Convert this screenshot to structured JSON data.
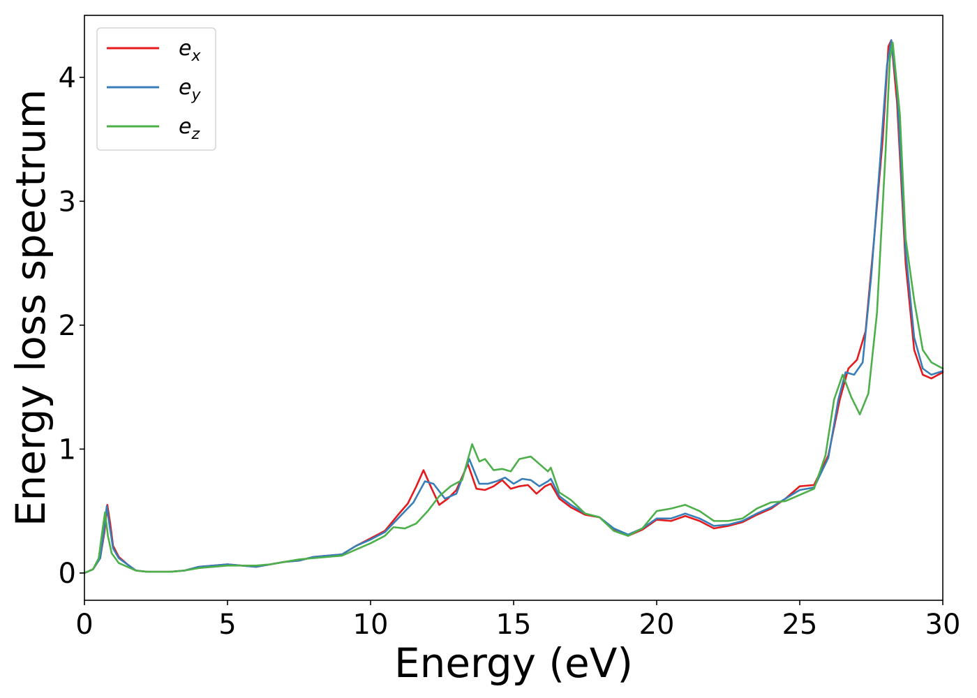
{
  "chart_data": {
    "type": "line",
    "xlabel": "Energy (eV)",
    "ylabel": "Energy loss spectrum",
    "xlim": [
      0,
      30
    ],
    "ylim": [
      -0.22,
      4.5
    ],
    "xticks": [
      0,
      5,
      10,
      15,
      20,
      25,
      30
    ],
    "yticks": [
      0,
      1,
      2,
      3,
      4
    ],
    "grid": false,
    "legend_position": "top-left",
    "series": [
      {
        "name": "e",
        "subscript": "x",
        "color": "#e41a1c",
        "points": [
          [
            0,
            0
          ],
          [
            0.3,
            0.03
          ],
          [
            0.55,
            0.12
          ],
          [
            0.7,
            0.33
          ],
          [
            0.8,
            0.55
          ],
          [
            0.9,
            0.4
          ],
          [
            1.0,
            0.22
          ],
          [
            1.2,
            0.13
          ],
          [
            1.5,
            0.07
          ],
          [
            1.8,
            0.02
          ],
          [
            2.2,
            0.01
          ],
          [
            3,
            0.01
          ],
          [
            3.5,
            0.02
          ],
          [
            4,
            0.05
          ],
          [
            4.5,
            0.06
          ],
          [
            5,
            0.07
          ],
          [
            5.5,
            0.06
          ],
          [
            6,
            0.05
          ],
          [
            6.5,
            0.07
          ],
          [
            7,
            0.09
          ],
          [
            7.5,
            0.1
          ],
          [
            8,
            0.13
          ],
          [
            8.5,
            0.14
          ],
          [
            9,
            0.15
          ],
          [
            9.5,
            0.22
          ],
          [
            10,
            0.28
          ],
          [
            10.5,
            0.34
          ],
          [
            11,
            0.48
          ],
          [
            11.3,
            0.56
          ],
          [
            11.6,
            0.7
          ],
          [
            11.85,
            0.83
          ],
          [
            12.1,
            0.7
          ],
          [
            12.4,
            0.55
          ],
          [
            12.7,
            0.6
          ],
          [
            13,
            0.67
          ],
          [
            13.4,
            0.88
          ],
          [
            13.7,
            0.68
          ],
          [
            14,
            0.67
          ],
          [
            14.3,
            0.7
          ],
          [
            14.6,
            0.75
          ],
          [
            14.9,
            0.68
          ],
          [
            15.2,
            0.7
          ],
          [
            15.5,
            0.71
          ],
          [
            15.8,
            0.64
          ],
          [
            16.1,
            0.7
          ],
          [
            16.3,
            0.72
          ],
          [
            16.6,
            0.6
          ],
          [
            17,
            0.53
          ],
          [
            17.5,
            0.47
          ],
          [
            18,
            0.45
          ],
          [
            18.5,
            0.35
          ],
          [
            19,
            0.3
          ],
          [
            19.5,
            0.35
          ],
          [
            20,
            0.43
          ],
          [
            20.5,
            0.42
          ],
          [
            21,
            0.46
          ],
          [
            21.5,
            0.42
          ],
          [
            22,
            0.36
          ],
          [
            22.5,
            0.38
          ],
          [
            23,
            0.41
          ],
          [
            23.5,
            0.47
          ],
          [
            24,
            0.52
          ],
          [
            24.5,
            0.6
          ],
          [
            25,
            0.7
          ],
          [
            25.5,
            0.71
          ],
          [
            26,
            0.95
          ],
          [
            26.4,
            1.4
          ],
          [
            26.7,
            1.65
          ],
          [
            27,
            1.72
          ],
          [
            27.3,
            1.95
          ],
          [
            27.6,
            2.7
          ],
          [
            27.9,
            3.5
          ],
          [
            28.1,
            4.25
          ],
          [
            28.2,
            4.3
          ],
          [
            28.4,
            3.8
          ],
          [
            28.7,
            2.5
          ],
          [
            29,
            1.8
          ],
          [
            29.3,
            1.6
          ],
          [
            29.6,
            1.57
          ],
          [
            30,
            1.62
          ]
        ]
      },
      {
        "name": "e",
        "subscript": "y",
        "color": "#377eb8",
        "points": [
          [
            0,
            0
          ],
          [
            0.3,
            0.03
          ],
          [
            0.55,
            0.12
          ],
          [
            0.68,
            0.33
          ],
          [
            0.78,
            0.54
          ],
          [
            0.88,
            0.38
          ],
          [
            1.0,
            0.2
          ],
          [
            1.2,
            0.12
          ],
          [
            1.5,
            0.07
          ],
          [
            1.8,
            0.02
          ],
          [
            2.2,
            0.01
          ],
          [
            3,
            0.01
          ],
          [
            3.5,
            0.02
          ],
          [
            4,
            0.05
          ],
          [
            4.5,
            0.06
          ],
          [
            5,
            0.07
          ],
          [
            5.5,
            0.06
          ],
          [
            6,
            0.05
          ],
          [
            6.5,
            0.07
          ],
          [
            7,
            0.09
          ],
          [
            7.5,
            0.1
          ],
          [
            8,
            0.13
          ],
          [
            8.5,
            0.14
          ],
          [
            9,
            0.15
          ],
          [
            9.5,
            0.22
          ],
          [
            10,
            0.27
          ],
          [
            10.5,
            0.33
          ],
          [
            11,
            0.45
          ],
          [
            11.5,
            0.57
          ],
          [
            11.9,
            0.74
          ],
          [
            12.2,
            0.72
          ],
          [
            12.6,
            0.6
          ],
          [
            13,
            0.64
          ],
          [
            13.45,
            0.92
          ],
          [
            13.8,
            0.72
          ],
          [
            14.1,
            0.72
          ],
          [
            14.4,
            0.74
          ],
          [
            14.7,
            0.77
          ],
          [
            15,
            0.72
          ],
          [
            15.3,
            0.76
          ],
          [
            15.6,
            0.75
          ],
          [
            15.9,
            0.7
          ],
          [
            16.2,
            0.74
          ],
          [
            16.3,
            0.76
          ],
          [
            16.6,
            0.62
          ],
          [
            17,
            0.55
          ],
          [
            17.5,
            0.48
          ],
          [
            18,
            0.45
          ],
          [
            18.5,
            0.36
          ],
          [
            19,
            0.31
          ],
          [
            19.5,
            0.36
          ],
          [
            20,
            0.44
          ],
          [
            20.5,
            0.44
          ],
          [
            21,
            0.48
          ],
          [
            21.5,
            0.44
          ],
          [
            22,
            0.38
          ],
          [
            22.5,
            0.39
          ],
          [
            23,
            0.42
          ],
          [
            23.5,
            0.48
          ],
          [
            24,
            0.53
          ],
          [
            24.5,
            0.6
          ],
          [
            25,
            0.67
          ],
          [
            25.5,
            0.69
          ],
          [
            26,
            0.93
          ],
          [
            26.35,
            1.4
          ],
          [
            26.6,
            1.62
          ],
          [
            26.9,
            1.6
          ],
          [
            27.2,
            1.7
          ],
          [
            27.5,
            2.4
          ],
          [
            27.8,
            3.3
          ],
          [
            28.05,
            4.1
          ],
          [
            28.2,
            4.3
          ],
          [
            28.4,
            3.9
          ],
          [
            28.7,
            2.6
          ],
          [
            29,
            1.9
          ],
          [
            29.3,
            1.65
          ],
          [
            29.6,
            1.6
          ],
          [
            30,
            1.63
          ]
        ]
      },
      {
        "name": "e",
        "subscript": "z",
        "color": "#4daf4a",
        "points": [
          [
            0,
            0
          ],
          [
            0.3,
            0.03
          ],
          [
            0.5,
            0.12
          ],
          [
            0.62,
            0.33
          ],
          [
            0.72,
            0.49
          ],
          [
            0.82,
            0.3
          ],
          [
            0.95,
            0.16
          ],
          [
            1.2,
            0.08
          ],
          [
            1.5,
            0.05
          ],
          [
            1.8,
            0.02
          ],
          [
            2.2,
            0.01
          ],
          [
            3,
            0.01
          ],
          [
            3.5,
            0.02
          ],
          [
            4,
            0.04
          ],
          [
            4.5,
            0.05
          ],
          [
            5,
            0.06
          ],
          [
            5.5,
            0.06
          ],
          [
            6,
            0.06
          ],
          [
            6.5,
            0.07
          ],
          [
            7,
            0.09
          ],
          [
            7.5,
            0.11
          ],
          [
            8,
            0.12
          ],
          [
            8.5,
            0.13
          ],
          [
            9,
            0.14
          ],
          [
            9.5,
            0.19
          ],
          [
            10,
            0.24
          ],
          [
            10.5,
            0.3
          ],
          [
            10.8,
            0.37
          ],
          [
            11.2,
            0.36
          ],
          [
            11.6,
            0.4
          ],
          [
            12,
            0.5
          ],
          [
            12.4,
            0.62
          ],
          [
            12.8,
            0.7
          ],
          [
            13.2,
            0.75
          ],
          [
            13.55,
            1.04
          ],
          [
            13.8,
            0.9
          ],
          [
            14,
            0.92
          ],
          [
            14.3,
            0.83
          ],
          [
            14.6,
            0.84
          ],
          [
            14.9,
            0.82
          ],
          [
            15.2,
            0.92
          ],
          [
            15.6,
            0.94
          ],
          [
            15.9,
            0.88
          ],
          [
            16.2,
            0.82
          ],
          [
            16.3,
            0.85
          ],
          [
            16.6,
            0.65
          ],
          [
            17,
            0.59
          ],
          [
            17.5,
            0.48
          ],
          [
            18,
            0.45
          ],
          [
            18.5,
            0.34
          ],
          [
            19,
            0.3
          ],
          [
            19.5,
            0.36
          ],
          [
            20,
            0.5
          ],
          [
            20.5,
            0.52
          ],
          [
            21,
            0.55
          ],
          [
            21.5,
            0.5
          ],
          [
            22,
            0.42
          ],
          [
            22.5,
            0.42
          ],
          [
            23,
            0.44
          ],
          [
            23.5,
            0.52
          ],
          [
            24,
            0.57
          ],
          [
            24.5,
            0.58
          ],
          [
            25,
            0.63
          ],
          [
            25.5,
            0.68
          ],
          [
            25.9,
            0.95
          ],
          [
            26.2,
            1.4
          ],
          [
            26.5,
            1.6
          ],
          [
            26.8,
            1.42
          ],
          [
            27.1,
            1.28
          ],
          [
            27.4,
            1.45
          ],
          [
            27.7,
            2.1
          ],
          [
            28,
            3.4
          ],
          [
            28.15,
            4.15
          ],
          [
            28.25,
            4.28
          ],
          [
            28.5,
            3.7
          ],
          [
            28.7,
            2.7
          ],
          [
            29,
            2.2
          ],
          [
            29.3,
            1.8
          ],
          [
            29.6,
            1.7
          ],
          [
            30,
            1.65
          ]
        ]
      }
    ]
  }
}
